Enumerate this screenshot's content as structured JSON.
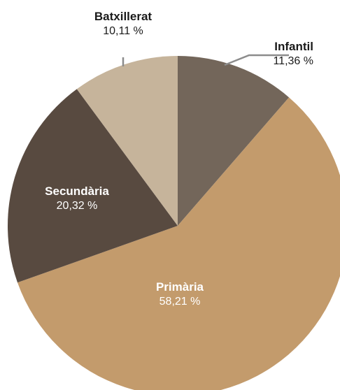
{
  "chart_data": {
    "type": "pie",
    "title": "",
    "start": "top, clockwise",
    "slices": [
      {
        "label": "Infantil",
        "value_label": "11,36 %",
        "value": 11.36,
        "color": "#73665a"
      },
      {
        "label": "Primària",
        "value_label": "58,21 %",
        "value": 58.21,
        "color": "#c39b6c"
      },
      {
        "label": "Secundària",
        "value_label": "20,32 %",
        "value": 20.32,
        "color": "#584a40"
      },
      {
        "label": "Batxillerat",
        "value_label": "10,11 %",
        "value": 10.11,
        "color": "#c6b49b"
      }
    ],
    "label_colors": {
      "outside": "#1a1a1a",
      "inside": "#ffffff",
      "leader_line": "#8c8c8c"
    }
  }
}
